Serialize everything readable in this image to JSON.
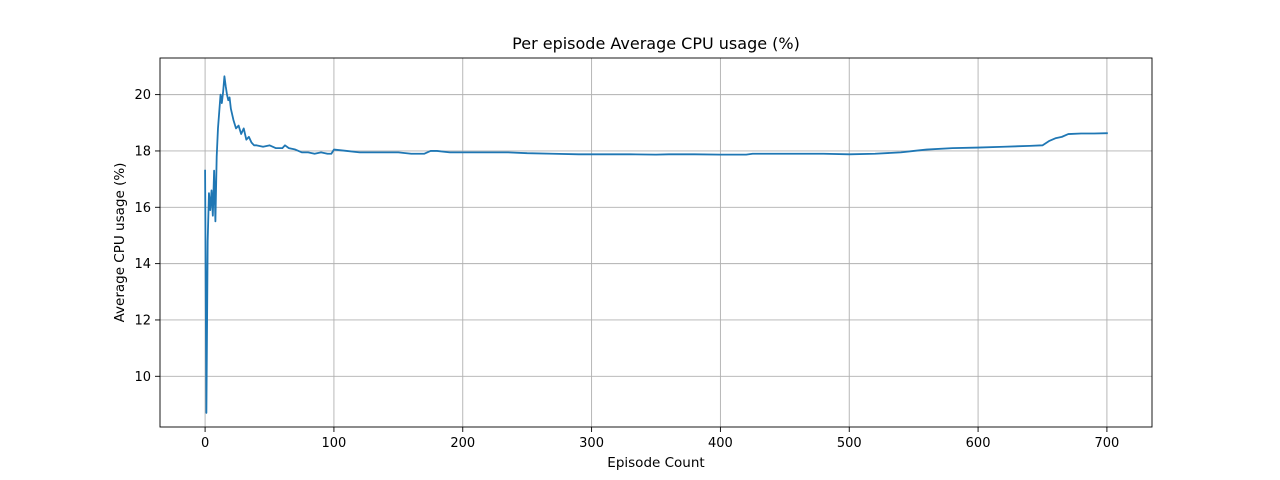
{
  "chart_data": {
    "type": "line",
    "title": "Per episode Average CPU usage (%)",
    "xlabel": "Episode Count",
    "ylabel": "Average CPU usage (%)",
    "xlim": [
      -35,
      735
    ],
    "ylim": [
      8.2,
      21.3
    ],
    "xticks": [
      0,
      100,
      200,
      300,
      400,
      500,
      600,
      700
    ],
    "yticks": [
      10,
      12,
      14,
      16,
      18,
      20
    ],
    "grid": true,
    "series": [
      {
        "color": "#1f77b4",
        "x": [
          0,
          1,
          2,
          3,
          4,
          5,
          6,
          7,
          8,
          9,
          10,
          11,
          12,
          13,
          14,
          15,
          16,
          17,
          18,
          19,
          20,
          22,
          24,
          26,
          28,
          30,
          32,
          34,
          36,
          38,
          40,
          45,
          50,
          55,
          60,
          62,
          65,
          70,
          75,
          80,
          85,
          90,
          95,
          98,
          100,
          110,
          120,
          130,
          140,
          150,
          160,
          170,
          175,
          180,
          190,
          200,
          220,
          230,
          235,
          250,
          270,
          290,
          310,
          330,
          350,
          360,
          380,
          400,
          420,
          425,
          450,
          480,
          500,
          520,
          540,
          550,
          560,
          580,
          600,
          620,
          640,
          650,
          655,
          660,
          665,
          670,
          680,
          690,
          700
        ],
        "y": [
          17.3,
          8.7,
          14.8,
          16.5,
          15.9,
          16.6,
          15.7,
          17.3,
          15.5,
          17.8,
          18.8,
          19.4,
          20.0,
          19.7,
          20.1,
          20.65,
          20.3,
          20.0,
          19.8,
          19.9,
          19.5,
          19.1,
          18.8,
          18.9,
          18.6,
          18.8,
          18.4,
          18.5,
          18.3,
          18.2,
          18.2,
          18.15,
          18.2,
          18.1,
          18.1,
          18.2,
          18.1,
          18.05,
          17.95,
          17.95,
          17.9,
          17.95,
          17.9,
          17.9,
          18.05,
          18.0,
          17.95,
          17.95,
          17.95,
          17.95,
          17.9,
          17.9,
          18.0,
          18.0,
          17.95,
          17.95,
          17.95,
          17.95,
          17.95,
          17.92,
          17.9,
          17.88,
          17.88,
          17.88,
          17.87,
          17.88,
          17.88,
          17.87,
          17.87,
          17.9,
          17.9,
          17.9,
          17.88,
          17.9,
          17.95,
          18.0,
          18.05,
          18.1,
          18.12,
          18.15,
          18.18,
          18.2,
          18.35,
          18.45,
          18.5,
          18.6,
          18.62,
          18.62,
          18.63
        ]
      }
    ]
  }
}
